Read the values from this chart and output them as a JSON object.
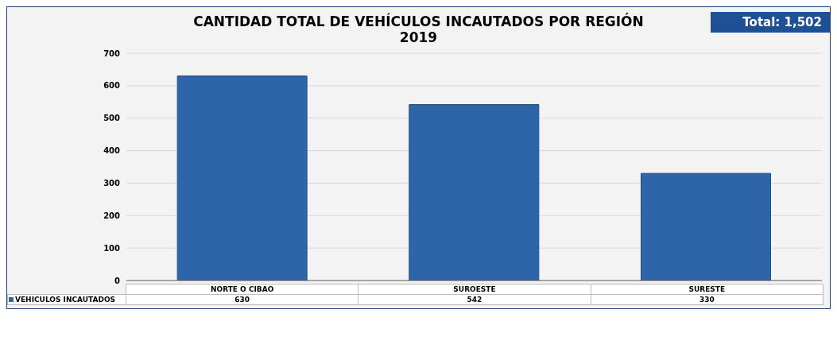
{
  "chart_data": {
    "type": "bar",
    "title": "CANTIDAD TOTAL DE VEHÍCULOS INCAUTADOS POR REGIÓN",
    "subtitle": "2019",
    "annotations": [
      "Total: 1,502"
    ],
    "categories": [
      "NORTE O CIBAO",
      "SUROESTE",
      "SURESTE"
    ],
    "series": [
      {
        "name": "VEHICULOS INCAUTADOS",
        "color": "#2e64a8",
        "values": [
          630,
          542,
          330
        ]
      }
    ],
    "ylim": [
      0,
      700
    ],
    "yticks": [
      0,
      100,
      200,
      300,
      400,
      500,
      600,
      700
    ],
    "grid": "y",
    "legend": "bottom",
    "data_labels": true
  }
}
